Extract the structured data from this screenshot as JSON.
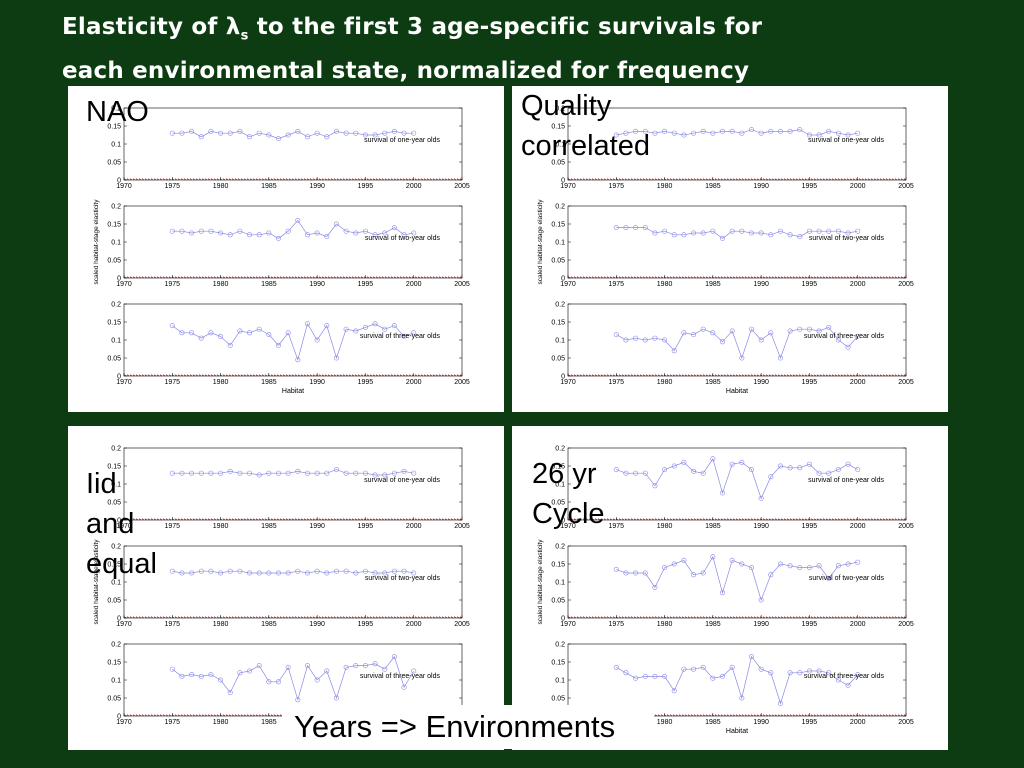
{
  "title": {
    "line1_before": "Elasticity of λ",
    "line1_sub": "s",
    "line1_after": " to the first 3 age-specific survivals for",
    "line2": "each environmental state, normalized for frequency"
  },
  "footer": "Years => Environments",
  "axis": {
    "xticks": [
      "1970",
      "1975",
      "1980",
      "1985",
      "1990",
      "1995",
      "2000",
      "2005"
    ],
    "yticks": [
      "0",
      "0.05",
      "0.1",
      "0.15",
      "0.2"
    ],
    "ylabel": "scaled habitat-stage elasticity",
    "xlabel": "Habitat"
  },
  "colors": {
    "background": "#0d3b12",
    "panel": "#ffffff",
    "series": "#8a8ae6",
    "baseline_blue": "#3b3bd6",
    "baseline_red": "#d63b3b"
  },
  "chart_data": [
    {
      "type": "line",
      "label": "NAO",
      "xlim": [
        1970,
        2005
      ],
      "ylim": [
        0,
        0.2
      ],
      "grid": false,
      "subplots": [
        {
          "name": "survival of one-year olds",
          "x": [
            1975,
            1976,
            1977,
            1978,
            1979,
            1980,
            1981,
            1982,
            1983,
            1984,
            1985,
            1986,
            1987,
            1988,
            1989,
            1990,
            1991,
            1992,
            1993,
            1994,
            1995,
            1996,
            1997,
            1998,
            1999,
            2000
          ],
          "values": [
            0.13,
            0.13,
            0.135,
            0.12,
            0.135,
            0.13,
            0.13,
            0.135,
            0.12,
            0.13,
            0.125,
            0.115,
            0.125,
            0.135,
            0.12,
            0.13,
            0.12,
            0.135,
            0.13,
            0.13,
            0.125,
            0.125,
            0.13,
            0.135,
            0.13,
            0.13
          ]
        },
        {
          "name": "survival of two-year olds",
          "x": [
            1975,
            1976,
            1977,
            1978,
            1979,
            1980,
            1981,
            1982,
            1983,
            1984,
            1985,
            1986,
            1987,
            1988,
            1989,
            1990,
            1991,
            1992,
            1993,
            1994,
            1995,
            1996,
            1997,
            1998,
            1999,
            2000
          ],
          "values": [
            0.13,
            0.13,
            0.125,
            0.13,
            0.13,
            0.125,
            0.12,
            0.13,
            0.12,
            0.12,
            0.125,
            0.11,
            0.13,
            0.16,
            0.12,
            0.125,
            0.115,
            0.15,
            0.13,
            0.125,
            0.13,
            0.12,
            0.125,
            0.14,
            0.12,
            0.125
          ]
        },
        {
          "name": "survival of three-year olds",
          "x": [
            1975,
            1976,
            1977,
            1978,
            1979,
            1980,
            1981,
            1982,
            1983,
            1984,
            1985,
            1986,
            1987,
            1988,
            1989,
            1990,
            1991,
            1992,
            1993,
            1994,
            1995,
            1996,
            1997,
            1998,
            1999,
            2000
          ],
          "values": [
            0.14,
            0.12,
            0.12,
            0.105,
            0.12,
            0.11,
            0.085,
            0.125,
            0.12,
            0.13,
            0.115,
            0.085,
            0.12,
            0.045,
            0.145,
            0.1,
            0.14,
            0.05,
            0.13,
            0.125,
            0.135,
            0.145,
            0.13,
            0.14,
            0.11,
            0.12
          ]
        }
      ]
    },
    {
      "type": "line",
      "label": "Quality\ncorrelated",
      "xlim": [
        1970,
        2005
      ],
      "ylim": [
        0,
        0.2
      ],
      "grid": false,
      "subplots": [
        {
          "name": "survival of one-year olds",
          "x": [
            1975,
            1976,
            1977,
            1978,
            1979,
            1980,
            1981,
            1982,
            1983,
            1984,
            1985,
            1986,
            1987,
            1988,
            1989,
            1990,
            1991,
            1992,
            1993,
            1994,
            1995,
            1996,
            1997,
            1998,
            1999,
            2000
          ],
          "values": [
            0.125,
            0.13,
            0.135,
            0.135,
            0.13,
            0.135,
            0.13,
            0.125,
            0.13,
            0.135,
            0.13,
            0.135,
            0.135,
            0.13,
            0.14,
            0.13,
            0.135,
            0.135,
            0.135,
            0.14,
            0.125,
            0.125,
            0.135,
            0.13,
            0.125,
            0.13
          ]
        },
        {
          "name": "survival of two-year olds",
          "x": [
            1975,
            1976,
            1977,
            1978,
            1979,
            1980,
            1981,
            1982,
            1983,
            1984,
            1985,
            1986,
            1987,
            1988,
            1989,
            1990,
            1991,
            1992,
            1993,
            1994,
            1995,
            1996,
            1997,
            1998,
            1999,
            2000
          ],
          "values": [
            0.14,
            0.14,
            0.14,
            0.14,
            0.125,
            0.13,
            0.12,
            0.12,
            0.125,
            0.125,
            0.13,
            0.11,
            0.13,
            0.13,
            0.125,
            0.125,
            0.12,
            0.13,
            0.12,
            0.115,
            0.13,
            0.13,
            0.13,
            0.13,
            0.125,
            0.13
          ]
        },
        {
          "name": "survival of three-year olds",
          "x": [
            1975,
            1976,
            1977,
            1978,
            1979,
            1980,
            1981,
            1982,
            1983,
            1984,
            1985,
            1986,
            1987,
            1988,
            1989,
            1990,
            1991,
            1992,
            1993,
            1994,
            1995,
            1996,
            1997,
            1998,
            1999,
            2000
          ],
          "values": [
            0.115,
            0.1,
            0.105,
            0.1,
            0.105,
            0.1,
            0.07,
            0.12,
            0.115,
            0.13,
            0.12,
            0.095,
            0.125,
            0.05,
            0.13,
            0.1,
            0.12,
            0.05,
            0.125,
            0.13,
            0.13,
            0.125,
            0.135,
            0.1,
            0.08,
            0.11
          ]
        }
      ]
    },
    {
      "type": "line",
      "label": "Iid\nand\nequal",
      "xlim": [
        1970,
        2005
      ],
      "ylim": [
        0,
        0.2
      ],
      "grid": false,
      "subplots": [
        {
          "name": "survival of one-year olds",
          "x": [
            1975,
            1976,
            1977,
            1978,
            1979,
            1980,
            1981,
            1982,
            1983,
            1984,
            1985,
            1986,
            1987,
            1988,
            1989,
            1990,
            1991,
            1992,
            1993,
            1994,
            1995,
            1996,
            1997,
            1998,
            1999,
            2000
          ],
          "values": [
            0.13,
            0.13,
            0.13,
            0.13,
            0.13,
            0.13,
            0.135,
            0.13,
            0.13,
            0.125,
            0.13,
            0.13,
            0.13,
            0.135,
            0.13,
            0.13,
            0.13,
            0.14,
            0.13,
            0.13,
            0.13,
            0.125,
            0.125,
            0.13,
            0.135,
            0.13
          ]
        },
        {
          "name": "survival of two-year olds",
          "x": [
            1975,
            1976,
            1977,
            1978,
            1979,
            1980,
            1981,
            1982,
            1983,
            1984,
            1985,
            1986,
            1987,
            1988,
            1989,
            1990,
            1991,
            1992,
            1993,
            1994,
            1995,
            1996,
            1997,
            1998,
            1999,
            2000
          ],
          "values": [
            0.13,
            0.125,
            0.125,
            0.13,
            0.13,
            0.125,
            0.13,
            0.13,
            0.125,
            0.125,
            0.125,
            0.125,
            0.125,
            0.13,
            0.125,
            0.13,
            0.125,
            0.13,
            0.13,
            0.125,
            0.13,
            0.125,
            0.125,
            0.13,
            0.13,
            0.125
          ]
        },
        {
          "name": "survival of three-year olds",
          "x": [
            1975,
            1976,
            1977,
            1978,
            1979,
            1980,
            1981,
            1982,
            1983,
            1984,
            1985,
            1986,
            1987,
            1988,
            1989,
            1990,
            1991,
            1992,
            1993,
            1994,
            1995,
            1996,
            1997,
            1998,
            1999,
            2000
          ],
          "values": [
            0.13,
            0.11,
            0.115,
            0.11,
            0.115,
            0.1,
            0.065,
            0.12,
            0.125,
            0.14,
            0.095,
            0.095,
            0.135,
            0.045,
            0.14,
            0.1,
            0.125,
            0.05,
            0.135,
            0.14,
            0.14,
            0.145,
            0.13,
            0.165,
            0.08,
            0.125
          ]
        }
      ]
    },
    {
      "type": "line",
      "label": "26 yr\nCycle",
      "xlim": [
        1970,
        2005
      ],
      "ylim": [
        0,
        0.2
      ],
      "grid": false,
      "subplots": [
        {
          "name": "survival of one-year olds",
          "x": [
            1975,
            1976,
            1977,
            1978,
            1979,
            1980,
            1981,
            1982,
            1983,
            1984,
            1985,
            1986,
            1987,
            1988,
            1989,
            1990,
            1991,
            1992,
            1993,
            1994,
            1995,
            1996,
            1997,
            1998,
            1999,
            2000
          ],
          "values": [
            0.14,
            0.13,
            0.13,
            0.13,
            0.095,
            0.14,
            0.15,
            0.16,
            0.135,
            0.13,
            0.17,
            0.075,
            0.155,
            0.16,
            0.14,
            0.06,
            0.12,
            0.15,
            0.145,
            0.145,
            0.155,
            0.13,
            0.13,
            0.14,
            0.155,
            0.14
          ]
        },
        {
          "name": "survival of two-year olds",
          "x": [
            1975,
            1976,
            1977,
            1978,
            1979,
            1980,
            1981,
            1982,
            1983,
            1984,
            1985,
            1986,
            1987,
            1988,
            1989,
            1990,
            1991,
            1992,
            1993,
            1994,
            1995,
            1996,
            1997,
            1998,
            1999,
            2000
          ],
          "values": [
            0.135,
            0.125,
            0.125,
            0.125,
            0.085,
            0.14,
            0.15,
            0.16,
            0.12,
            0.125,
            0.17,
            0.07,
            0.16,
            0.15,
            0.14,
            0.05,
            0.12,
            0.15,
            0.145,
            0.14,
            0.14,
            0.145,
            0.11,
            0.145,
            0.15,
            0.155
          ]
        },
        {
          "name": "survival of three-year olds",
          "x": [
            1975,
            1976,
            1977,
            1978,
            1979,
            1980,
            1981,
            1982,
            1983,
            1984,
            1985,
            1986,
            1987,
            1988,
            1989,
            1990,
            1991,
            1992,
            1993,
            1994,
            1995,
            1996,
            1997,
            1998,
            1999,
            2000
          ],
          "values": [
            0.135,
            0.12,
            0.105,
            0.11,
            0.11,
            0.11,
            0.07,
            0.13,
            0.13,
            0.135,
            0.105,
            0.11,
            0.135,
            0.05,
            0.165,
            0.13,
            0.12,
            0.035,
            0.12,
            0.12,
            0.125,
            0.125,
            0.12,
            0.1,
            0.085,
            0.115
          ]
        }
      ]
    }
  ]
}
